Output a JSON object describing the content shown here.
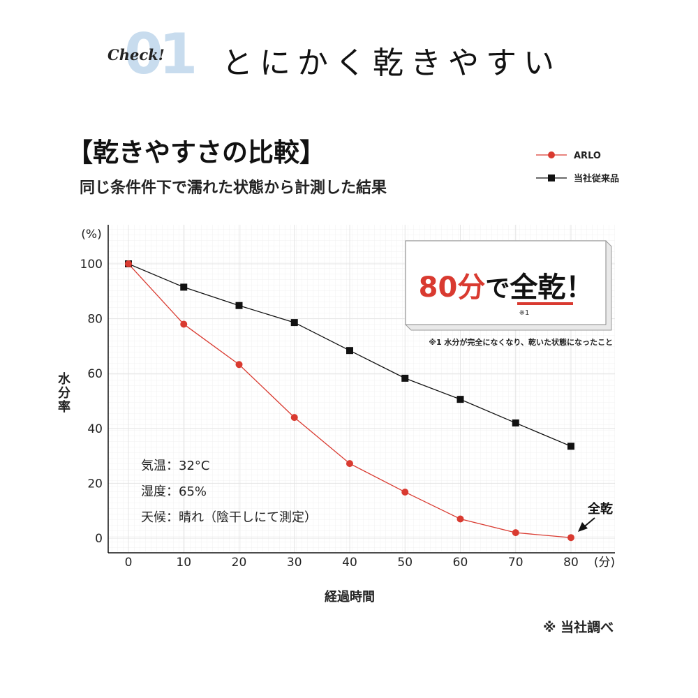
{
  "header": {
    "badge_text": "Check!",
    "number": "01",
    "headline": "とにかく乾きやすい"
  },
  "chart_header": {
    "title": "【乾きやすさの比較】",
    "subtitle": "同じ条件件下で濡れた状態から計測した結果"
  },
  "callout": {
    "text_accent": "80分",
    "text_mid": "で",
    "text_emph": "全乾",
    "text_tail": "！",
    "footnote_mark": "※1",
    "footnote": "※1 水分が完全になくなり、乾いた状態になったこと"
  },
  "conditions": [
    "気温：32°C",
    "湿度：65%",
    "天候：晴れ（陰干しにて測定）"
  ],
  "annotation": "全乾",
  "source_note": "※ 当社調べ",
  "colors": {
    "arlo": "#d93a30",
    "conventional": "#111111",
    "number_bg": "#c8dcee",
    "grid": "#e4e4e4"
  },
  "chart_data": {
    "type": "line",
    "title": "【乾きやすさの比較】",
    "subtitle": "同じ条件件下で濡れた状態から計測した結果",
    "xlabel": "経過時間",
    "ylabel": "水分率",
    "x_unit": "(分)",
    "y_unit": "(%)",
    "x": [
      0,
      10,
      20,
      30,
      40,
      50,
      60,
      70,
      80
    ],
    "xlim": [
      0,
      80
    ],
    "ylim": [
      0,
      100
    ],
    "yticks": [
      0,
      20,
      40,
      60,
      80,
      100
    ],
    "grid": true,
    "legend_position": "top-right",
    "series": [
      {
        "name": "ARLO",
        "marker": "circle",
        "values": [
          100,
          78,
          63.3,
          44,
          27.2,
          16.8,
          7,
          2,
          0.2
        ]
      },
      {
        "name": "当社従来品",
        "marker": "square",
        "values": [
          100,
          91.5,
          84.8,
          78.6,
          68.4,
          58.3,
          50.6,
          42,
          33.5
        ]
      }
    ]
  }
}
